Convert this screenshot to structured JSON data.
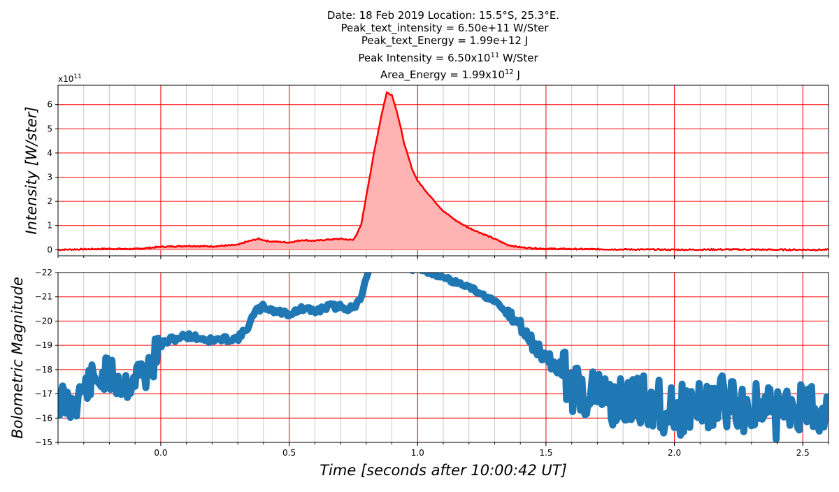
{
  "header": {
    "line1": "Date: 18 Feb 2019      Location: 15.5°S, 25.3°E.",
    "line2": "Peak_text_intensity = 6.50e+11 W/Ster",
    "line3": "Peak_text_Energy = 1.99e+12 J",
    "line4_prefix": "Peak Intensity = 6.50x10",
    "line4_exp": "11",
    "line4_suffix": " W/Ster",
    "line5_prefix": "Area_Energy = 1.99x10",
    "line5_exp": "12",
    "line5_suffix": " J"
  },
  "colors": {
    "intensity_line": "#ff0000",
    "intensity_fill": "#ffb3b3",
    "magnitude_line": "#1f77b4",
    "grid_major": "#ff0000",
    "grid_minor": "#c8c8c8"
  },
  "chart_data": [
    {
      "type": "area",
      "ylabel": "Intensity [W/ster]",
      "offset_label": "x10",
      "offset_exp": "11",
      "xlim": [
        -0.4,
        2.6
      ],
      "ylim": [
        -0.25,
        6.8
      ],
      "yticks": [
        0,
        1,
        2,
        3,
        4,
        5,
        6
      ],
      "ytick_labels": [
        "0",
        "1",
        "2",
        "3",
        "4",
        "5",
        "6"
      ],
      "grid": true,
      "series": [
        {
          "x": [
            -0.4,
            -0.3,
            -0.2,
            -0.1,
            0.0,
            0.1,
            0.2,
            0.3,
            0.33,
            0.38,
            0.42,
            0.5,
            0.55,
            0.6,
            0.65,
            0.7,
            0.75,
            0.78,
            0.8,
            0.83,
            0.86,
            0.88,
            0.9,
            0.92,
            0.95,
            0.98,
            1.0,
            1.05,
            1.1,
            1.15,
            1.2,
            1.3,
            1.35,
            1.4,
            1.5,
            1.7,
            2.0,
            2.2,
            2.4,
            2.6
          ],
          "y": [
            0.0,
            0.02,
            0.04,
            0.03,
            0.12,
            0.16,
            0.14,
            0.2,
            0.32,
            0.45,
            0.35,
            0.3,
            0.4,
            0.37,
            0.42,
            0.45,
            0.4,
            1.0,
            2.2,
            4.0,
            5.6,
            6.5,
            6.4,
            5.7,
            4.3,
            3.3,
            2.85,
            2.2,
            1.6,
            1.2,
            0.9,
            0.45,
            0.2,
            0.1,
            0.04,
            0.02,
            0.0,
            0.01,
            0.0,
            0.0
          ]
        }
      ]
    },
    {
      "type": "line",
      "ylabel": "Bolometric Magnitude",
      "xlabel": "Time [seconds after 10:00:42 UT]",
      "xlim": [
        -0.4,
        2.6
      ],
      "ylim": [
        -15,
        -22
      ],
      "yticks": [
        -15,
        -16,
        -17,
        -18,
        -19,
        -20,
        -21,
        -22
      ],
      "ytick_labels": [
        "−15",
        "−16",
        "−17",
        "−18",
        "−19",
        "−20",
        "−21",
        "−22"
      ],
      "xticks": [
        0.0,
        0.5,
        1.0,
        1.5,
        2.0,
        2.5
      ],
      "xtick_labels": [
        "0.0",
        "0.5",
        "1.0",
        "1.5",
        "2.0",
        "2.5"
      ],
      "grid": true,
      "series": [
        {
          "x": [
            -0.4,
            -0.35,
            -0.3,
            -0.25,
            -0.2,
            -0.15,
            -0.12,
            -0.1,
            -0.05,
            0.0,
            0.03,
            0.1,
            0.2,
            0.3,
            0.33,
            0.37,
            0.4,
            0.45,
            0.5,
            0.55,
            0.6,
            0.65,
            0.7,
            0.75,
            0.78,
            0.8,
            0.82,
            1.05,
            1.1,
            1.2,
            1.3,
            1.35,
            1.4,
            1.45,
            1.5,
            1.55,
            1.6,
            1.7,
            1.8,
            1.9,
            2.0,
            2.1,
            2.2,
            2.3,
            2.4,
            2.5,
            2.6
          ],
          "y": [
            -16.8,
            -16.5,
            -17.2,
            -17.6,
            -17.8,
            -17.4,
            -17.5,
            -17.7,
            -17.9,
            -19.0,
            -19.2,
            -19.4,
            -19.2,
            -19.3,
            -19.6,
            -20.4,
            -20.6,
            -20.4,
            -20.3,
            -20.5,
            -20.4,
            -20.6,
            -20.6,
            -20.5,
            -21.0,
            -21.8,
            -22.5,
            -22.0,
            -21.8,
            -21.4,
            -20.8,
            -20.3,
            -19.8,
            -19.0,
            -18.5,
            -18.0,
            -17.3,
            -16.9,
            -16.6,
            -16.7,
            -16.3,
            -16.5,
            -16.7,
            -16.4,
            -16.2,
            -16.5,
            -16.4
          ]
        }
      ]
    }
  ]
}
